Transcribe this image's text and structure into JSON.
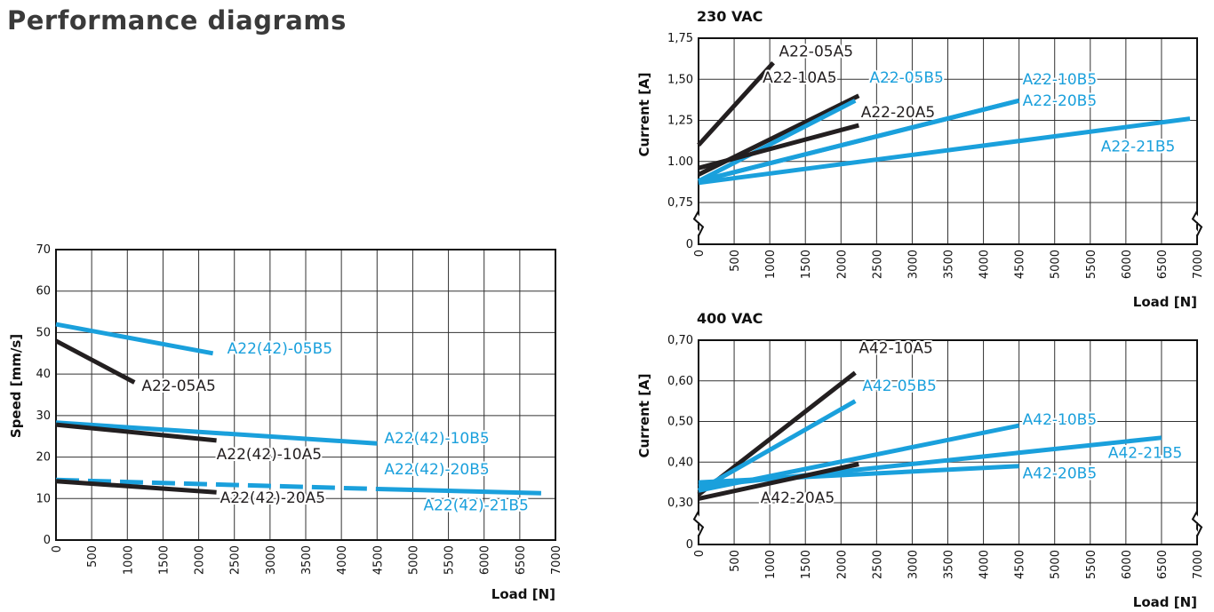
{
  "page": {
    "title": "Performance diagrams"
  },
  "colors": {
    "black_series": "#231f20",
    "blue_series": "#1aa0dc",
    "frame": "#111111",
    "grid": "#333333"
  },
  "chart_data": [
    {
      "id": "speed",
      "type": "line",
      "title": "",
      "xlabel": "Load [N]",
      "ylabel": "Speed [mm/s]",
      "xlim": [
        0,
        7000
      ],
      "ylim": [
        0,
        70
      ],
      "xticks": [
        0,
        500,
        1000,
        1500,
        2000,
        2500,
        3000,
        3500,
        4000,
        4500,
        5000,
        5500,
        6000,
        6500,
        7000
      ],
      "yticks": [
        {
          "v": 0,
          "label": "0"
        },
        {
          "v": 10,
          "label": "10"
        },
        {
          "v": 20,
          "label": "20"
        },
        {
          "v": 30,
          "label": "30"
        },
        {
          "v": 40,
          "label": "40"
        },
        {
          "v": 50,
          "label": "50"
        },
        {
          "v": 60,
          "label": "60"
        },
        {
          "v": 70,
          "label": "70"
        }
      ],
      "grid": true,
      "series": [
        {
          "name": "A22(42)-05B5",
          "color": "blue",
          "x": [
            0,
            2200
          ],
          "y": [
            52,
            45
          ],
          "label_at": [
            2400,
            45
          ]
        },
        {
          "name": "A22-05A5",
          "color": "black",
          "x": [
            0,
            1100
          ],
          "y": [
            48,
            38
          ],
          "label_at": [
            1200,
            36
          ]
        },
        {
          "name": "A22(42)-10B5",
          "color": "blue",
          "x": [
            0,
            4500
          ],
          "y": [
            28.3,
            23.3
          ],
          "label_at": [
            4600,
            23.3
          ]
        },
        {
          "name": "A22(42)-10A5",
          "color": "black",
          "x": [
            0,
            2250
          ],
          "y": [
            27.8,
            24
          ],
          "label_at": [
            2250,
            19.5
          ]
        },
        {
          "name": "A22(42)-20B5",
          "color": "blue",
          "dashed": true,
          "x": [
            0,
            4500
          ],
          "y": [
            14.5,
            12.3
          ],
          "label_at": [
            4600,
            15.8
          ]
        },
        {
          "name": "A22(42)-21B5",
          "color": "blue",
          "x": [
            4500,
            6800
          ],
          "y": [
            12.3,
            11.3
          ],
          "label_at": [
            5150,
            7.2
          ]
        },
        {
          "name": "A22(42)-20A5",
          "color": "black",
          "x": [
            0,
            2250
          ],
          "y": [
            14.2,
            11.5
          ],
          "label_at": [
            2300,
            9
          ]
        }
      ]
    },
    {
      "id": "current230",
      "type": "line",
      "title": "230 VAC",
      "xlabel": "Load [N]",
      "ylabel": "Current  [A]",
      "xlim": [
        0,
        7000
      ],
      "ylim": [
        0,
        1.75
      ],
      "xticks": [
        0,
        500,
        1000,
        1500,
        2000,
        2500,
        3000,
        3500,
        4000,
        4500,
        5000,
        5500,
        6000,
        6500,
        7000
      ],
      "yticks": [
        {
          "v": 1.75,
          "label": "1,75"
        },
        {
          "v": 1.5,
          "label": "1,50"
        },
        {
          "v": 1.25,
          "label": "1,25"
        },
        {
          "v": 1.0,
          "label": "1.00"
        },
        {
          "v": 0.75,
          "label": "0,75"
        },
        {
          "v": 0,
          "label": "0"
        }
      ],
      "grid": true,
      "axis_break": true,
      "series": [
        {
          "name": "A22-05A5",
          "color": "black",
          "x": [
            0,
            1050
          ],
          "y": [
            1.1,
            1.6
          ],
          "label_at": [
            1130,
            1.64
          ]
        },
        {
          "name": "A22-10A5",
          "color": "black",
          "x": [
            0,
            2250
          ],
          "y": [
            0.92,
            1.4
          ],
          "label_at": [
            900,
            1.48
          ]
        },
        {
          "name": "A22-05B5",
          "color": "blue",
          "x": [
            0,
            2200
          ],
          "y": [
            0.88,
            1.37
          ],
          "label_at": [
            2400,
            1.48
          ]
        },
        {
          "name": "A22-20A5",
          "color": "black",
          "x": [
            0,
            2250
          ],
          "y": [
            0.96,
            1.22
          ],
          "label_at": [
            2280,
            1.27
          ]
        },
        {
          "name": "A22-10B5",
          "color": "blue",
          "x": [
            0,
            4500
          ],
          "y": [
            0.88,
            1.37
          ],
          "label_at": [
            4550,
            1.47
          ]
        },
        {
          "name": "A22-20B5",
          "color": "blue",
          "x": [
            0,
            4500
          ],
          "y": [
            0.88,
            1.37
          ],
          "label_at": [
            4550,
            1.34
          ]
        },
        {
          "name": "A22-21B5",
          "color": "blue",
          "x": [
            0,
            6900
          ],
          "y": [
            0.87,
            1.26
          ],
          "label_at": [
            5650,
            1.06
          ]
        }
      ]
    },
    {
      "id": "current400",
      "type": "line",
      "title": "400 VAC",
      "xlabel": "Load [N]",
      "ylabel": "Current  [A]",
      "xlim": [
        0,
        7000
      ],
      "ylim": [
        0,
        0.7
      ],
      "xticks": [
        0,
        500,
        1000,
        1500,
        2000,
        2500,
        3000,
        3500,
        4000,
        4500,
        5000,
        5500,
        6000,
        6500,
        7000
      ],
      "yticks": [
        {
          "v": 0.7,
          "label": "0,70"
        },
        {
          "v": 0.6,
          "label": "0,60"
        },
        {
          "v": 0.5,
          "label": "0,50"
        },
        {
          "v": 0.4,
          "label": "0,40"
        },
        {
          "v": 0.3,
          "label": "0,30"
        },
        {
          "v": 0,
          "label": "0"
        }
      ],
      "grid": true,
      "axis_break": true,
      "series": [
        {
          "name": "A42-10A5",
          "color": "black",
          "x": [
            0,
            2200
          ],
          "y": [
            0.32,
            0.62
          ],
          "label_at": [
            2250,
            0.668
          ]
        },
        {
          "name": "A42-05B5",
          "color": "blue",
          "x": [
            0,
            2200
          ],
          "y": [
            0.33,
            0.55
          ],
          "label_at": [
            2300,
            0.575
          ]
        },
        {
          "name": "A42-10B5",
          "color": "blue",
          "x": [
            0,
            4500
          ],
          "y": [
            0.33,
            0.49
          ],
          "label_at": [
            4550,
            0.492
          ]
        },
        {
          "name": "A42-21B5",
          "color": "blue",
          "x": [
            0,
            6500
          ],
          "y": [
            0.34,
            0.46
          ],
          "label_at": [
            5750,
            0.41
          ]
        },
        {
          "name": "A42-20B5",
          "color": "blue",
          "x": [
            0,
            4500
          ],
          "y": [
            0.35,
            0.39
          ],
          "label_at": [
            4550,
            0.36
          ]
        },
        {
          "name": "A42-20A5",
          "color": "black",
          "x": [
            0,
            2250
          ],
          "y": [
            0.31,
            0.395
          ],
          "label_at": [
            870,
            0.3
          ]
        }
      ]
    }
  ]
}
